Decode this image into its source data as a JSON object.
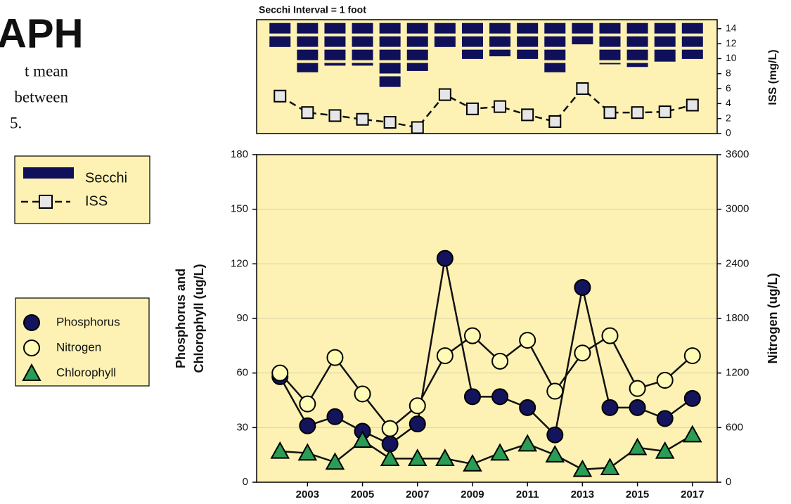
{
  "heading": "APH",
  "intro_lines": [
    "t mean",
    "between",
    "5."
  ],
  "chart_data": [
    {
      "type": "combo",
      "title": "Secchi Interval = 1 foot",
      "x": [
        2002,
        2003,
        2004,
        2005,
        2006,
        2007,
        2008,
        2009,
        2010,
        2011,
        2012,
        2013,
        2014,
        2015,
        2016,
        2017
      ],
      "xlim": [
        2001.15,
        2017.9
      ],
      "ylim": [
        -0.25,
        8.3
      ],
      "y_inverted": true,
      "y2label": "ISS (mg/L)",
      "y2lim": [
        0,
        15.2
      ],
      "y2ticks": [
        0,
        2,
        4,
        6,
        8,
        10,
        12,
        14
      ],
      "series": [
        {
          "name": "Secchi",
          "kind": "bar",
          "color": "#10105a",
          "values": [
            1.8,
            3.7,
            3.2,
            3.2,
            4.8,
            3.6,
            1.8,
            2.7,
            2.5,
            2.7,
            3.7,
            1.6,
            3.1,
            3.3,
            2.9,
            2.7
          ]
        },
        {
          "name": "ISS",
          "kind": "line",
          "marker": "square",
          "dashed": true,
          "color": "#e6e6e6",
          "axis": "y2",
          "values": [
            5.0,
            2.8,
            2.4,
            1.9,
            1.5,
            0.8,
            5.2,
            3.3,
            3.6,
            2.5,
            1.6,
            6.0,
            2.8,
            2.8,
            2.9,
            3.8
          ]
        }
      ],
      "background": "#fdf2b3"
    },
    {
      "type": "line",
      "x": [
        2002,
        2003,
        2004,
        2005,
        2006,
        2007,
        2008,
        2009,
        2010,
        2011,
        2012,
        2013,
        2014,
        2015,
        2016,
        2017
      ],
      "xlim": [
        2001.15,
        2017.9
      ],
      "xticks": [
        2003,
        2005,
        2007,
        2009,
        2011,
        2013,
        2015,
        2017
      ],
      "ylabel": [
        "Phosphorus and",
        "Chlorophyll (ug/L)"
      ],
      "ylim": [
        0,
        180
      ],
      "yticks": [
        0,
        30,
        60,
        90,
        120,
        150,
        180
      ],
      "y2label": "Nitrogen (ug/L)",
      "y2lim": [
        0,
        3600
      ],
      "y2ticks": [
        0,
        600,
        1200,
        1800,
        2400,
        3000,
        3600
      ],
      "grid": true,
      "background": "#fdf2b3",
      "series": [
        {
          "name": "Phosphorus",
          "marker": "circle",
          "color": "#14145c",
          "values": [
            58,
            31,
            36,
            28,
            21,
            32,
            123,
            47,
            47,
            41,
            26,
            107,
            41,
            41,
            35,
            46
          ]
        },
        {
          "name": "Nitrogen",
          "marker": "circle",
          "color": "#fffab5",
          "axis": "y2",
          "values": [
            1200,
            860,
            1370,
            970,
            590,
            840,
            1390,
            1610,
            1330,
            1560,
            1000,
            1420,
            1610,
            1030,
            1120,
            1390
          ]
        },
        {
          "name": "Chlorophyll",
          "marker": "triangle",
          "color": "#2a9d55",
          "values": [
            17,
            16,
            11,
            23,
            13,
            13,
            13,
            10,
            16,
            21,
            15,
            7,
            8,
            19,
            17,
            26
          ]
        }
      ]
    }
  ]
}
